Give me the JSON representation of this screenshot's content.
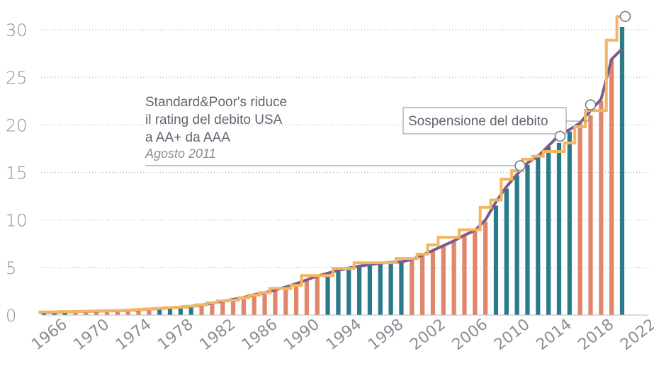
{
  "chart_data": {
    "type": "bar",
    "ylim": [
      0,
      32
    ],
    "y_ticks": [
      "0",
      "5",
      "10",
      "15",
      "20",
      "25",
      "30"
    ],
    "x_tick_labels": [
      "1966",
      "1970",
      "1974",
      "1978",
      "1982",
      "1986",
      "1990",
      "1994",
      "1998",
      "2002",
      "2006",
      "2010",
      "2014",
      "2018",
      "2022"
    ],
    "grid": "horizontal dotted",
    "x": [
      1966,
      1967,
      1968,
      1969,
      1970,
      1971,
      1972,
      1973,
      1974,
      1975,
      1976,
      1977,
      1978,
      1979,
      1980,
      1981,
      1982,
      1983,
      1984,
      1985,
      1986,
      1987,
      1988,
      1989,
      1990,
      1991,
      1992,
      1993,
      1994,
      1995,
      1996,
      1997,
      1998,
      1999,
      2000,
      2001,
      2002,
      2003,
      2004,
      2005,
      2006,
      2007,
      2008,
      2009,
      2010,
      2011,
      2012,
      2013,
      2014,
      2015,
      2016,
      2017,
      2018,
      2019,
      2020,
      2021
    ],
    "values": [
      0.3,
      0.3,
      0.3,
      0.35,
      0.37,
      0.4,
      0.42,
      0.45,
      0.47,
      0.52,
      0.6,
      0.68,
      0.75,
      0.8,
      0.9,
      1.0,
      1.2,
      1.4,
      1.6,
      1.8,
      2.1,
      2.3,
      2.6,
      2.9,
      3.2,
      3.6,
      4.0,
      4.3,
      4.6,
      4.9,
      5.1,
      5.3,
      5.4,
      5.5,
      5.6,
      5.8,
      6.2,
      6.7,
      7.2,
      7.7,
      8.3,
      8.8,
      9.8,
      11.5,
      13.3,
      14.7,
      15.8,
      16.6,
      17.7,
      18.1,
      19.3,
      20.1,
      21.0,
      22.5,
      26.9,
      30.3
    ],
    "bar_colors": [
      "#2b7a8a",
      "#2b7a8a",
      "#2b7a8a",
      "#e0876a",
      "#e0876a",
      "#e0876a",
      "#e0876a",
      "#e0876a",
      "#e0876a",
      "#e0876a",
      "#e0876a",
      "#2b7a8a",
      "#2b7a8a",
      "#2b7a8a",
      "#2b7a8a",
      "#e0876a",
      "#e0876a",
      "#e0876a",
      "#e0876a",
      "#e0876a",
      "#e0876a",
      "#e0876a",
      "#e0876a",
      "#e0876a",
      "#e0876a",
      "#e0876a",
      "#e0876a",
      "#2b7a8a",
      "#2b7a8a",
      "#2b7a8a",
      "#2b7a8a",
      "#2b7a8a",
      "#2b7a8a",
      "#2b7a8a",
      "#2b7a8a",
      "#e0876a",
      "#e0876a",
      "#e0876a",
      "#e0876a",
      "#e0876a",
      "#e0876a",
      "#e0876a",
      "#e0876a",
      "#2b7a8a",
      "#2b7a8a",
      "#2b7a8a",
      "#2b7a8a",
      "#2b7a8a",
      "#2b7a8a",
      "#2b7a8a",
      "#2b7a8a",
      "#e0876a",
      "#e0876a",
      "#e0876a",
      "#e0876a",
      "#2b7a8a"
    ],
    "debt_line": [
      0.3,
      0.3,
      0.33,
      0.36,
      0.38,
      0.41,
      0.44,
      0.46,
      0.49,
      0.55,
      0.63,
      0.7,
      0.77,
      0.83,
      0.93,
      1.05,
      1.25,
      1.45,
      1.65,
      1.85,
      2.15,
      2.35,
      2.65,
      2.95,
      3.3,
      3.7,
      4.1,
      4.4,
      4.7,
      4.95,
      5.15,
      5.3,
      5.45,
      5.55,
      5.6,
      5.85,
      6.3,
      6.8,
      7.3,
      7.8,
      8.4,
      8.9,
      10.0,
      11.9,
      13.5,
      14.8,
      16.0,
      16.7,
      17.8,
      18.9,
      19.5,
      20.2,
      21.5,
      22.7,
      26.9,
      28.0
    ],
    "limit_line": [
      0.33,
      0.33,
      0.36,
      0.36,
      0.39,
      0.43,
      0.43,
      0.47,
      0.5,
      0.58,
      0.63,
      0.7,
      0.78,
      0.83,
      0.93,
      1.08,
      1.29,
      1.49,
      1.57,
      1.82,
      2.11,
      2.35,
      2.8,
      2.8,
      3.12,
      4.15,
      4.15,
      4.15,
      4.9,
      4.9,
      5.5,
      5.5,
      5.5,
      5.5,
      5.95,
      5.95,
      6.4,
      7.38,
      8.18,
      8.18,
      8.97,
      8.97,
      11.32,
      12.1,
      14.29,
      15.19,
      16.39,
      16.7,
      17.2,
      17.2,
      18.1,
      19.8,
      21.5,
      21.5,
      28.9,
      31.4
    ],
    "line_colors": {
      "debt": "#7d5a8a",
      "limit": "#f2b663"
    },
    "markers_year": [
      2011.3,
      2015.1,
      2018.0,
      2021.3
    ],
    "markers_value": [
      15.7,
      18.8,
      22.1,
      31.4
    ],
    "annotation_sp": {
      "line1": "Standard&Poor's riduce",
      "line2": "il rating del debito USA",
      "line3": "a AA+ da AAA",
      "date": "Agosto 2011"
    },
    "annotation_suspension": "Sospensione del debito"
  }
}
